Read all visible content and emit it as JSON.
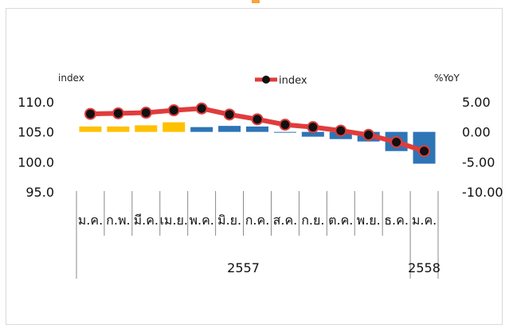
{
  "chart_data": {
    "type": "bar+line",
    "left_axis": {
      "label": "index",
      "ticks": [
        "110.0",
        "105.0",
        "100.0",
        "95.0"
      ],
      "range": [
        95,
        110
      ]
    },
    "right_axis": {
      "label": "%YoY",
      "ticks": [
        "5.00",
        "0.00",
        "-5.00",
        "-10.00"
      ],
      "range": [
        -10,
        5
      ]
    },
    "categories": [
      "ม.ค.",
      "ก.พ.",
      "มี.ค.",
      "เม.ย.",
      "พ.ค.",
      "มิ.ย.",
      "ก.ค.",
      "ส.ค.",
      "ก.ย.",
      "ต.ค.",
      "พ.ย.",
      "ธ.ค.",
      "ม.ค."
    ],
    "years": [
      {
        "label": "2557",
        "span": [
          0,
          11
        ]
      },
      {
        "label": "2558",
        "span": [
          12,
          12
        ]
      }
    ],
    "bars": {
      "axis": "right",
      "values": [
        0.9,
        0.9,
        1.1,
        1.6,
        0.8,
        1.0,
        0.9,
        0.0,
        -0.8,
        -1.2,
        -1.6,
        -3.2,
        -5.3
      ],
      "colors": [
        "#ffc000",
        "#ffc000",
        "#ffc000",
        "#ffc000",
        "#2e75b6",
        "#2e75b6",
        "#2e75b6",
        "#2e75b6",
        "#2e75b6",
        "#2e75b6",
        "#2e75b6",
        "#2e75b6",
        "#2e75b6"
      ]
    },
    "line": {
      "name": "index",
      "axis": "left",
      "values": [
        108.0,
        108.1,
        108.2,
        108.6,
        108.9,
        107.9,
        107.1,
        106.2,
        105.8,
        105.2,
        104.5,
        103.3,
        101.8
      ],
      "color": "#e03c3c",
      "marker_color": "#111111"
    },
    "legend": {
      "position": "top-center",
      "label": "index"
    },
    "grid": false
  }
}
